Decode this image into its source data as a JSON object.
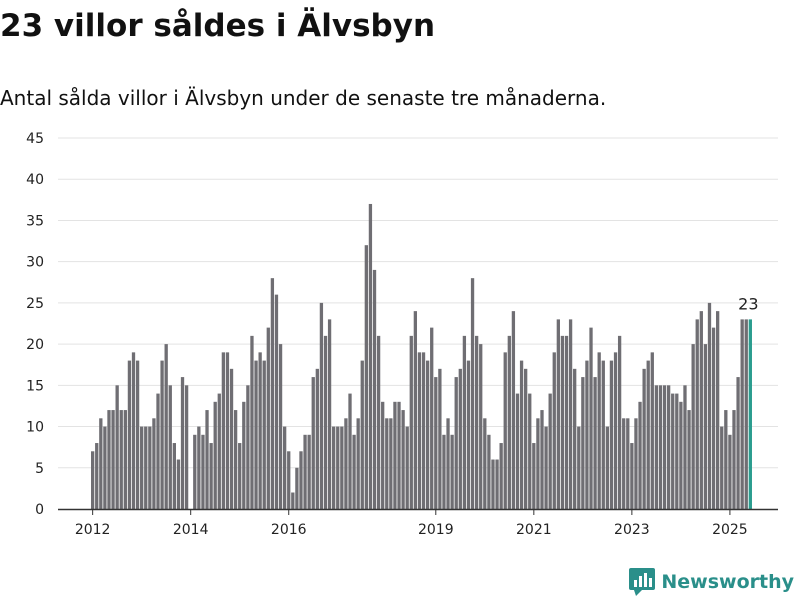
{
  "title": "23 villor såldes i Älvsbyn",
  "subtitle": "Antal sålda villor i Älvsbyn under de senaste tre månaderna.",
  "brand": {
    "name": "Newsworthy"
  },
  "colors": {
    "bar": "#6f6e73",
    "highlight": "#2a9d8f",
    "grid": "#e3e3e3",
    "axis": "#333333"
  },
  "chart_data": {
    "type": "bar",
    "title": "",
    "xlabel": "",
    "ylabel": "",
    "ylim": [
      0,
      45
    ],
    "yticks": [
      0,
      5,
      10,
      15,
      20,
      25,
      30,
      35,
      40,
      45
    ],
    "grid": true,
    "legend": "none",
    "x_start": "2012-01",
    "xticks": [
      {
        "label": "2012",
        "date": "2012-01"
      },
      {
        "label": "2014",
        "date": "2014-01"
      },
      {
        "label": "2016",
        "date": "2016-01"
      },
      {
        "label": "2019",
        "date": "2019-01"
      },
      {
        "label": "2021",
        "date": "2021-01"
      },
      {
        "label": "2023",
        "date": "2023-01"
      },
      {
        "label": "2025",
        "date": "2025-01"
      }
    ],
    "highlight_label": "23",
    "values": [
      7,
      8,
      11,
      10,
      12,
      12,
      15,
      12,
      12,
      18,
      19,
      18,
      10,
      10,
      10,
      11,
      14,
      18,
      20,
      15,
      8,
      6,
      16,
      15,
      0,
      9,
      10,
      9,
      12,
      8,
      13,
      14,
      19,
      19,
      17,
      12,
      8,
      13,
      15,
      21,
      18,
      19,
      18,
      22,
      28,
      26,
      20,
      10,
      7,
      2,
      5,
      7,
      9,
      9,
      16,
      17,
      25,
      21,
      23,
      10,
      10,
      10,
      11,
      14,
      9,
      11,
      18,
      32,
      37,
      29,
      21,
      13,
      11,
      11,
      13,
      13,
      12,
      10,
      21,
      24,
      19,
      19,
      18,
      22,
      16,
      17,
      9,
      11,
      9,
      16,
      17,
      21,
      18,
      28,
      21,
      20,
      11,
      9,
      6,
      6,
      8,
      19,
      21,
      24,
      14,
      18,
      17,
      14,
      8,
      11,
      12,
      10,
      14,
      19,
      23,
      21,
      21,
      23,
      17,
      10,
      16,
      18,
      22,
      16,
      19,
      18,
      10,
      18,
      19,
      21,
      11,
      11,
      8,
      11,
      13,
      17,
      18,
      19,
      15,
      15,
      15,
      15,
      14,
      14,
      13,
      15,
      12,
      20,
      23,
      24,
      20,
      25,
      22,
      24,
      10,
      12,
      9,
      12,
      16,
      23,
      23,
      23
    ]
  }
}
